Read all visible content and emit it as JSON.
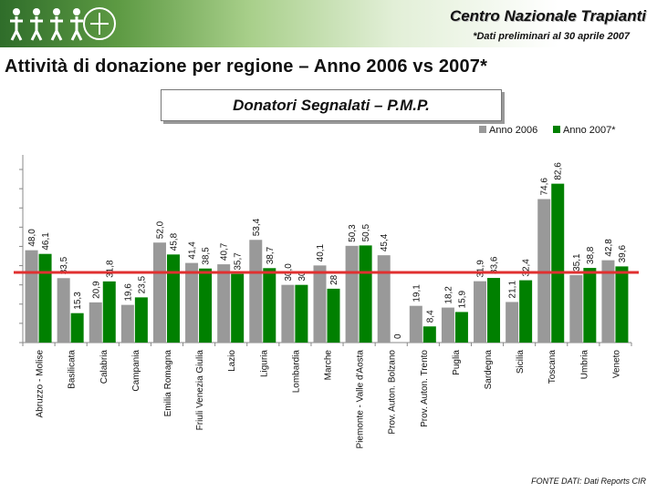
{
  "header": {
    "brand": "Centro Nazionale Trapianti",
    "subtitle": "*Dati preliminari al 30 aprile 2007",
    "logo_icon": "people-figures-logo-icon"
  },
  "page_title": "Attività di donazione per regione – Anno 2006 vs 2007*",
  "source_note": "FONTE DATI: Dati Reports CIR",
  "colors": {
    "series_2006": "#999999",
    "series_2007": "#008000",
    "reference_line": "#e03030"
  },
  "chart_data": {
    "type": "bar",
    "title": "Donatori Segnalati – P.M.P.",
    "categories": [
      "Abruzzo - Molise",
      "Basilicata",
      "Calabria",
      "Campania",
      "Emilia Romagna",
      "Friuli Venezia Giulia",
      "Lazio",
      "Liguria",
      "Lombardia",
      "Marche",
      "Piemonte - Valle d'Aosta",
      "Prov. Auton. Bolzano",
      "Prov. Auton. Trento",
      "Puglia",
      "Sardegna",
      "Sicilia",
      "Toscana",
      "Umbria",
      "Veneto"
    ],
    "series": [
      {
        "name": "Anno 2006",
        "values": [
          48.0,
          33.5,
          20.9,
          19.6,
          52.0,
          41.4,
          40.7,
          53.4,
          30.0,
          40.1,
          50.3,
          45.4,
          19.1,
          18.2,
          31.9,
          21.1,
          74.6,
          35.1,
          42.8
        ],
        "labels": [
          "48,0",
          "33,5",
          "20,9",
          "19,6",
          "52,0",
          "41,4",
          "40,7",
          "53,4",
          "30,0",
          "40,1",
          "50,3",
          "45,4",
          "19,1",
          "18,2",
          "31,9",
          "21,1",
          "74,6",
          "35,1",
          "42,8"
        ]
      },
      {
        "name": "Anno 2007*",
        "values": [
          46.1,
          15.3,
          31.8,
          23.5,
          45.8,
          38.5,
          35.7,
          38.7,
          30.0,
          28.0,
          50.5,
          0,
          8.4,
          15.9,
          33.6,
          32.4,
          82.6,
          38.8,
          39.6
        ],
        "labels": [
          "46,1",
          "15,3",
          "31,8",
          "23,5",
          "45,8",
          "38,5",
          "35,7",
          "38,7",
          "30",
          "28",
          "50,5",
          "0",
          "8,4",
          "15,9",
          "33,6",
          "32,4",
          "82,6",
          "38,8",
          "39,6"
        ]
      }
    ],
    "ylim": [
      0,
      90
    ],
    "reference_line": 36.5,
    "legend_position": "top-right",
    "grid": false
  }
}
